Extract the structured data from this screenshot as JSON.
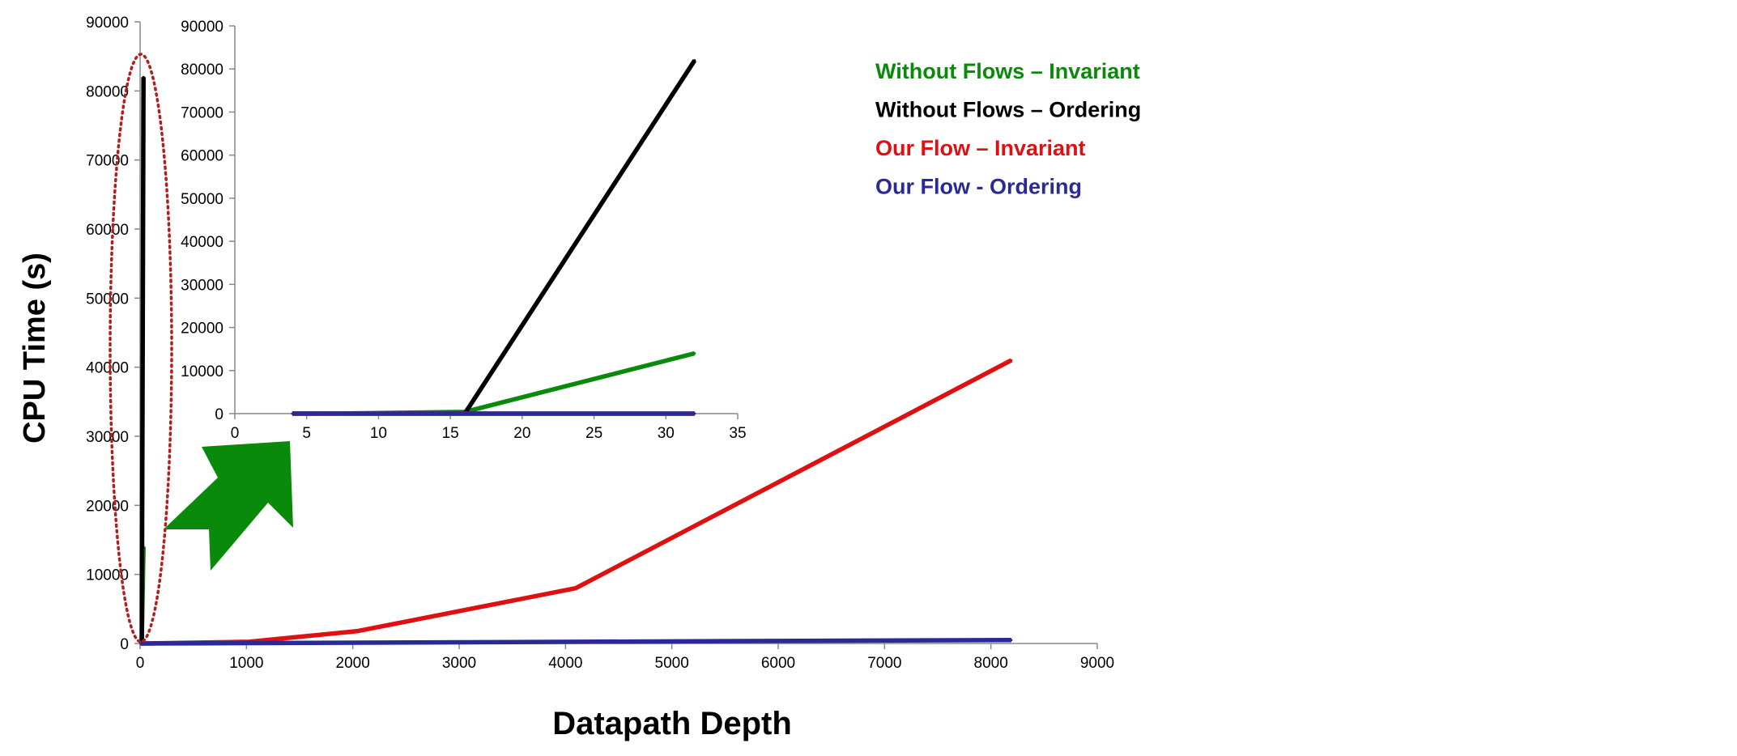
{
  "colors": {
    "green": "#0a8a0a",
    "black": "#000000",
    "red": "#dd1111",
    "blue": "#2a2a96",
    "highlight": "#b02020",
    "arrow": "#0a8a0a"
  },
  "chart_data": [
    {
      "type": "line",
      "xlabel": "Datapath Depth",
      "ylabel": "CPU Time (s)",
      "xlim": [
        0,
        9000
      ],
      "ylim": [
        0,
        90000
      ],
      "xticks": [
        "0",
        "1000",
        "2000",
        "3000",
        "4000",
        "5000",
        "6000",
        "7000",
        "8000",
        "9000"
      ],
      "yticks": [
        "0",
        "10000",
        "20000",
        "30000",
        "40000",
        "50000",
        "60000",
        "70000",
        "80000",
        "90000"
      ],
      "grid": false,
      "legend_position": "top-right",
      "series": [
        {
          "name": "Without Flows – Invariant",
          "color": "green",
          "x": [
            4,
            8,
            16,
            32
          ],
          "y": [
            10,
            40,
            400,
            14000
          ]
        },
        {
          "name": "Without Flows – Ordering",
          "color": "black",
          "x": [
            16,
            32
          ],
          "y": [
            0,
            82000
          ]
        },
        {
          "name": "Our Flow – Invariant",
          "color": "red",
          "x": [
            4,
            8,
            16,
            32,
            1024,
            2048,
            4096,
            8192
          ],
          "y": [
            0,
            0,
            0,
            0,
            250,
            1800,
            8000,
            41000
          ]
        },
        {
          "name": "Our Flow - Ordering",
          "color": "blue",
          "x": [
            4,
            8,
            16,
            32,
            1024,
            2048,
            4096,
            8192
          ],
          "y": [
            0,
            0,
            0,
            0,
            60,
            120,
            250,
            500
          ]
        }
      ]
    },
    {
      "type": "line",
      "xlim": [
        0,
        35
      ],
      "ylim": [
        0,
        90000
      ],
      "xticks": [
        "0",
        "5",
        "10",
        "15",
        "20",
        "25",
        "30",
        "35"
      ],
      "yticks": [
        "0",
        "10000",
        "20000",
        "30000",
        "40000",
        "50000",
        "60000",
        "70000",
        "80000",
        "90000"
      ],
      "grid": false,
      "series": [
        {
          "color": "green",
          "x": [
            4,
            8,
            16,
            32
          ],
          "y": [
            10,
            40,
            400,
            14000
          ]
        },
        {
          "color": "black",
          "x": [
            16,
            32
          ],
          "y": [
            0,
            82000
          ]
        },
        {
          "color": "red",
          "x": [
            4,
            8,
            16,
            32
          ],
          "y": [
            0,
            0,
            0,
            0
          ]
        },
        {
          "color": "blue",
          "x": [
            4,
            8,
            16,
            32
          ],
          "y": [
            0,
            0,
            0,
            0
          ]
        }
      ]
    }
  ]
}
